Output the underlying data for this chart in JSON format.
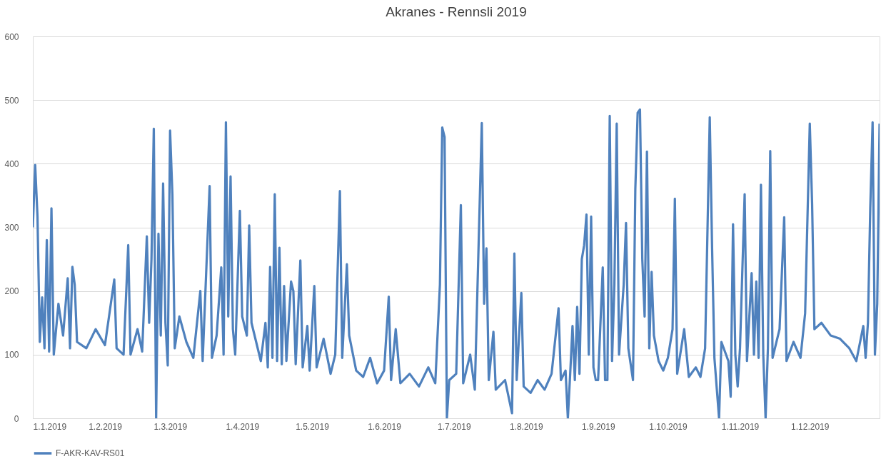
{
  "chart_data": {
    "type": "line",
    "title": "Akranes - Rennsli 2019",
    "x": [
      "2019-01-01",
      "2019-01-02",
      "2019-01-03",
      "2019-01-04",
      "2019-01-05",
      "2019-01-06",
      "2019-01-07",
      "2019-01-08",
      "2019-01-09",
      "2019-01-10",
      "2019-01-12",
      "2019-01-14",
      "2019-01-16",
      "2019-01-17",
      "2019-01-18",
      "2019-01-19",
      "2019-01-20",
      "2019-01-24",
      "2019-01-28",
      "2019-02-01",
      "2019-02-05",
      "2019-02-06",
      "2019-02-09",
      "2019-02-11",
      "2019-02-12",
      "2019-02-15",
      "2019-02-17",
      "2019-02-19",
      "2019-02-20",
      "2019-02-21",
      "2019-02-22",
      "2019-02-23",
      "2019-02-24",
      "2019-02-25",
      "2019-02-26",
      "2019-02-27",
      "2019-02-28",
      "2019-03-01",
      "2019-03-02",
      "2019-03-03",
      "2019-03-05",
      "2019-03-08",
      "2019-03-11",
      "2019-03-14",
      "2019-03-15",
      "2019-03-18",
      "2019-03-19",
      "2019-03-21",
      "2019-03-23",
      "2019-03-24",
      "2019-03-25",
      "2019-03-26",
      "2019-03-27",
      "2019-03-28",
      "2019-03-29",
      "2019-03-31",
      "2019-04-01",
      "2019-04-03",
      "2019-04-04",
      "2019-04-05",
      "2019-04-07",
      "2019-04-09",
      "2019-04-11",
      "2019-04-12",
      "2019-04-13",
      "2019-04-14",
      "2019-04-15",
      "2019-04-16",
      "2019-04-17",
      "2019-04-18",
      "2019-04-19",
      "2019-04-20",
      "2019-04-22",
      "2019-04-23",
      "2019-04-24",
      "2019-04-26",
      "2019-04-27",
      "2019-04-29",
      "2019-04-30",
      "2019-05-02",
      "2019-05-03",
      "2019-05-06",
      "2019-05-09",
      "2019-05-11",
      "2019-05-13",
      "2019-05-14",
      "2019-05-16",
      "2019-05-17",
      "2019-05-20",
      "2019-05-23",
      "2019-05-26",
      "2019-05-29",
      "2019-06-01",
      "2019-06-03",
      "2019-06-04",
      "2019-06-06",
      "2019-06-08",
      "2019-06-12",
      "2019-06-16",
      "2019-06-20",
      "2019-06-23",
      "2019-06-25",
      "2019-06-26",
      "2019-06-27",
      "2019-06-28",
      "2019-06-29",
      "2019-07-02",
      "2019-07-04",
      "2019-07-05",
      "2019-07-08",
      "2019-07-10",
      "2019-07-13",
      "2019-07-14",
      "2019-07-15",
      "2019-07-16",
      "2019-07-18",
      "2019-07-19",
      "2019-07-23",
      "2019-07-26",
      "2019-07-27",
      "2019-07-28",
      "2019-07-30",
      "2019-07-31",
      "2019-08-03",
      "2019-08-06",
      "2019-08-09",
      "2019-08-12",
      "2019-08-15",
      "2019-08-16",
      "2019-08-18",
      "2019-08-19",
      "2019-08-20",
      "2019-08-21",
      "2019-08-22",
      "2019-08-23",
      "2019-08-24",
      "2019-08-25",
      "2019-08-26",
      "2019-08-27",
      "2019-08-28",
      "2019-08-29",
      "2019-08-30",
      "2019-08-31",
      "2019-09-01",
      "2019-09-03",
      "2019-09-04",
      "2019-09-05",
      "2019-09-06",
      "2019-09-07",
      "2019-09-08",
      "2019-09-09",
      "2019-09-10",
      "2019-09-12",
      "2019-09-13",
      "2019-09-14",
      "2019-09-16",
      "2019-09-17",
      "2019-09-18",
      "2019-09-19",
      "2019-09-20",
      "2019-09-21",
      "2019-09-22",
      "2019-09-23",
      "2019-09-24",
      "2019-09-25",
      "2019-09-27",
      "2019-09-29",
      "2019-10-01",
      "2019-10-03",
      "2019-10-04",
      "2019-10-05",
      "2019-10-08",
      "2019-10-10",
      "2019-10-13",
      "2019-10-15",
      "2019-10-17",
      "2019-10-19",
      "2019-10-20",
      "2019-10-21",
      "2019-10-23",
      "2019-10-24",
      "2019-10-27",
      "2019-10-28",
      "2019-10-29",
      "2019-10-30",
      "2019-10-31",
      "2019-11-01",
      "2019-11-03",
      "2019-11-04",
      "2019-11-06",
      "2019-11-07",
      "2019-11-08",
      "2019-11-09",
      "2019-11-10",
      "2019-11-11",
      "2019-11-12",
      "2019-11-13",
      "2019-11-14",
      "2019-11-15",
      "2019-11-18",
      "2019-11-20",
      "2019-11-21",
      "2019-11-24",
      "2019-11-27",
      "2019-11-29",
      "2019-12-01",
      "2019-12-02",
      "2019-12-03",
      "2019-12-06",
      "2019-12-10",
      "2019-12-14",
      "2019-12-18",
      "2019-12-21",
      "2019-12-24",
      "2019-12-25",
      "2019-12-26",
      "2019-12-27",
      "2019-12-28",
      "2019-12-29",
      "2019-12-30",
      "2019-12-31"
    ],
    "series": [
      {
        "name": "F-AKR-KAV-RS01",
        "color": "#4f81bd",
        "values": [
          300,
          398,
          317,
          120,
          190,
          110,
          280,
          105,
          330,
          100,
          180,
          130,
          220,
          110,
          238,
          210,
          120,
          110,
          140,
          115,
          218,
          110,
          100,
          272,
          100,
          140,
          105,
          286,
          150,
          250,
          455,
          0,
          290,
          130,
          369,
          150,
          83,
          452,
          351,
          110,
          160,
          120,
          95,
          200,
          90,
          365,
          95,
          130,
          237,
          100,
          465,
          160,
          380,
          140,
          100,
          326,
          160,
          130,
          303,
          150,
          120,
          90,
          150,
          80,
          238,
          95,
          352,
          90,
          268,
          85,
          208,
          90,
          215,
          200,
          85,
          248,
          80,
          145,
          75,
          208,
          80,
          125,
          70,
          100,
          357,
          95,
          242,
          130,
          75,
          65,
          95,
          55,
          75,
          191,
          60,
          140,
          55,
          70,
          50,
          80,
          55,
          210,
          457,
          442,
          0,
          60,
          70,
          335,
          55,
          100,
          45,
          464,
          180,
          267,
          60,
          136,
          45,
          60,
          8,
          259,
          60,
          197,
          50,
          40,
          60,
          45,
          70,
          173,
          60,
          75,
          0,
          70,
          145,
          60,
          175,
          70,
          250,
          272,
          320,
          100,
          317,
          80,
          60,
          60,
          237,
          60,
          60,
          475,
          90,
          210,
          463,
          100,
          210,
          307,
          110,
          60,
          360,
          480,
          485,
          250,
          160,
          419,
          110,
          230,
          130,
          90,
          75,
          95,
          140,
          345,
          70,
          140,
          65,
          80,
          65,
          110,
          473,
          268,
          95,
          0,
          120,
          90,
          34,
          305,
          100,
          50,
          110,
          352,
          90,
          228,
          100,
          215,
          95,
          367,
          100,
          0,
          110,
          420,
          95,
          140,
          316,
          90,
          120,
          95,
          165,
          463,
          337,
          140,
          150,
          130,
          125,
          110,
          90,
          145,
          95,
          150,
          330,
          465,
          100,
          180,
          463
        ]
      }
    ],
    "xlim": [
      "2019-01-01",
      "2019-12-31"
    ],
    "xticks": [
      {
        "value": "2019-01-01",
        "label": "1.1.2019"
      },
      {
        "value": "2019-02-01",
        "label": "1.2.2019"
      },
      {
        "value": "2019-03-01",
        "label": "1.3.2019"
      },
      {
        "value": "2019-04-01",
        "label": "1.4.2019"
      },
      {
        "value": "2019-05-01",
        "label": "1.5.2019"
      },
      {
        "value": "2019-06-01",
        "label": "1.6.2019"
      },
      {
        "value": "2019-07-01",
        "label": "1.7.2019"
      },
      {
        "value": "2019-08-01",
        "label": "1.8.2019"
      },
      {
        "value": "2019-09-01",
        "label": "1.9.2019"
      },
      {
        "value": "2019-10-01",
        "label": "1.10.2019"
      },
      {
        "value": "2019-11-01",
        "label": "1.11.2019"
      },
      {
        "value": "2019-12-01",
        "label": "1.12.2019"
      }
    ],
    "ylim": [
      0,
      600
    ],
    "yticks": [
      0,
      100,
      200,
      300,
      400,
      500,
      600
    ],
    "grid": "y",
    "legend": "bottom",
    "marker": "none",
    "line_style": "solid"
  }
}
